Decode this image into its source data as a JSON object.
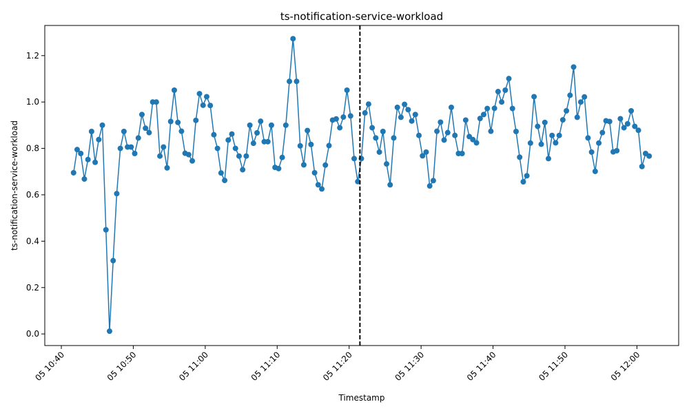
{
  "chart_data": {
    "type": "line",
    "title": "ts-notification-service-workload",
    "xlabel": "Timestamp",
    "ylabel": "ts-notification-service-workload",
    "x_tick_labels": [
      "05 10:40",
      "05 10:50",
      "05 11:00",
      "05 11:10",
      "05 11:20",
      "05 11:30",
      "05 11:40",
      "05 11:50",
      "05 12:00"
    ],
    "x_tick_minutes": [
      0,
      10,
      20,
      30,
      40,
      50,
      60,
      70,
      80
    ],
    "y_ticks": [
      "0.0",
      "0.2",
      "0.4",
      "0.6",
      "0.8",
      "1.0",
      "1.2"
    ],
    "y_tick_values": [
      0,
      0.2,
      0.4,
      0.6,
      0.8,
      1.0,
      1.2
    ],
    "xlim_minutes": [
      -2.3,
      85.8
    ],
    "ylim": [
      -0.05,
      1.33
    ],
    "grid": false,
    "marker_line": {
      "style": "dashed",
      "color": "#000000",
      "x_minutes": 41.5
    },
    "series_color": "#1f77b4",
    "x_minutes": [
      1.7,
      2.2,
      2.7,
      3.2,
      3.7,
      4.2,
      4.7,
      5.2,
      5.7,
      6.2,
      6.7,
      7.2,
      7.7,
      8.2,
      8.7,
      9.2,
      9.7,
      10.2,
      10.7,
      11.2,
      11.7,
      12.2,
      12.7,
      13.2,
      13.7,
      14.2,
      14.7,
      15.2,
      15.7,
      16.2,
      16.7,
      17.2,
      17.7,
      18.2,
      18.7,
      19.2,
      19.7,
      20.2,
      20.7,
      21.2,
      21.7,
      22.2,
      22.7,
      23.2,
      23.7,
      24.2,
      24.7,
      25.2,
      25.7,
      26.2,
      26.7,
      27.2,
      27.7,
      28.2,
      28.7,
      29.2,
      29.7,
      30.2,
      30.7,
      31.2,
      31.7,
      32.2,
      32.7,
      33.2,
      33.7,
      34.2,
      34.7,
      35.2,
      35.7,
      36.2,
      36.7,
      37.2,
      37.7,
      38.2,
      38.7,
      39.2,
      39.7,
      40.2,
      40.7,
      41.2,
      41.7,
      42.2,
      42.7,
      43.2,
      43.7,
      44.2,
      44.7,
      45.2,
      45.7,
      46.2,
      46.7,
      47.2,
      47.7,
      48.2,
      48.7,
      49.2,
      49.7,
      50.2,
      50.7,
      51.2,
      51.7,
      52.2,
      52.7,
      53.2,
      53.7,
      54.2,
      54.7,
      55.2,
      55.7,
      56.2,
      56.7,
      57.2,
      57.7,
      58.2,
      58.7,
      59.2,
      59.7,
      60.2,
      60.7,
      61.2,
      61.7,
      62.2,
      62.7,
      63.2,
      63.7,
      64.2,
      64.7,
      65.2,
      65.7,
      66.2,
      66.7,
      67.2,
      67.7,
      68.2,
      68.7,
      69.2,
      69.7,
      70.2,
      70.7,
      71.2,
      71.7,
      72.2,
      72.7,
      73.2,
      73.7,
      74.2,
      74.7,
      75.2,
      75.7,
      76.2,
      76.7,
      77.2,
      77.7,
      78.2,
      78.7,
      79.2,
      79.7,
      80.2,
      80.7,
      81.2,
      81.7
    ],
    "values": [
      0.695,
      0.795,
      0.778,
      0.668,
      0.752,
      0.873,
      0.74,
      0.838,
      0.9,
      0.449,
      0.012,
      0.316,
      0.605,
      0.8,
      0.873,
      0.806,
      0.806,
      0.778,
      0.845,
      0.946,
      0.887,
      0.868,
      1.0,
      1.0,
      0.767,
      0.806,
      0.716,
      0.916,
      1.051,
      0.912,
      0.874,
      0.779,
      0.773,
      0.746,
      0.921,
      1.036,
      0.986,
      1.023,
      0.985,
      0.859,
      0.8,
      0.694,
      0.662,
      0.836,
      0.862,
      0.8,
      0.767,
      0.708,
      0.767,
      0.9,
      0.822,
      0.867,
      0.917,
      0.829,
      0.829,
      0.9,
      0.718,
      0.713,
      0.761,
      0.9,
      1.089,
      1.273,
      1.089,
      0.811,
      0.729,
      0.877,
      0.817,
      0.695,
      0.643,
      0.625,
      0.728,
      0.812,
      0.922,
      0.927,
      0.889,
      0.935,
      1.051,
      0.94,
      0.756,
      0.657,
      0.756,
      0.953,
      0.991,
      0.889,
      0.845,
      0.784,
      0.873,
      0.733,
      0.643,
      0.845,
      0.977,
      0.934,
      0.99,
      0.967,
      0.918,
      0.946,
      0.856,
      0.768,
      0.784,
      0.638,
      0.661,
      0.874,
      0.913,
      0.836,
      0.868,
      0.977,
      0.856,
      0.778,
      0.778,
      0.922,
      0.851,
      0.838,
      0.824,
      0.929,
      0.946,
      0.972,
      0.874,
      0.973,
      1.045,
      1.0,
      1.051,
      1.101,
      0.972,
      0.873,
      0.762,
      0.656,
      0.682,
      0.823,
      1.023,
      0.895,
      0.818,
      0.912,
      0.756,
      0.856,
      0.824,
      0.856,
      0.923,
      0.962,
      1.029,
      1.151,
      0.934,
      1.0,
      1.022,
      0.845,
      0.784,
      0.701,
      0.823,
      0.868,
      0.919,
      0.916,
      0.785,
      0.79,
      0.928,
      0.889,
      0.906,
      0.962,
      0.895,
      0.878,
      0.722,
      0.778,
      0.767
    ]
  }
}
